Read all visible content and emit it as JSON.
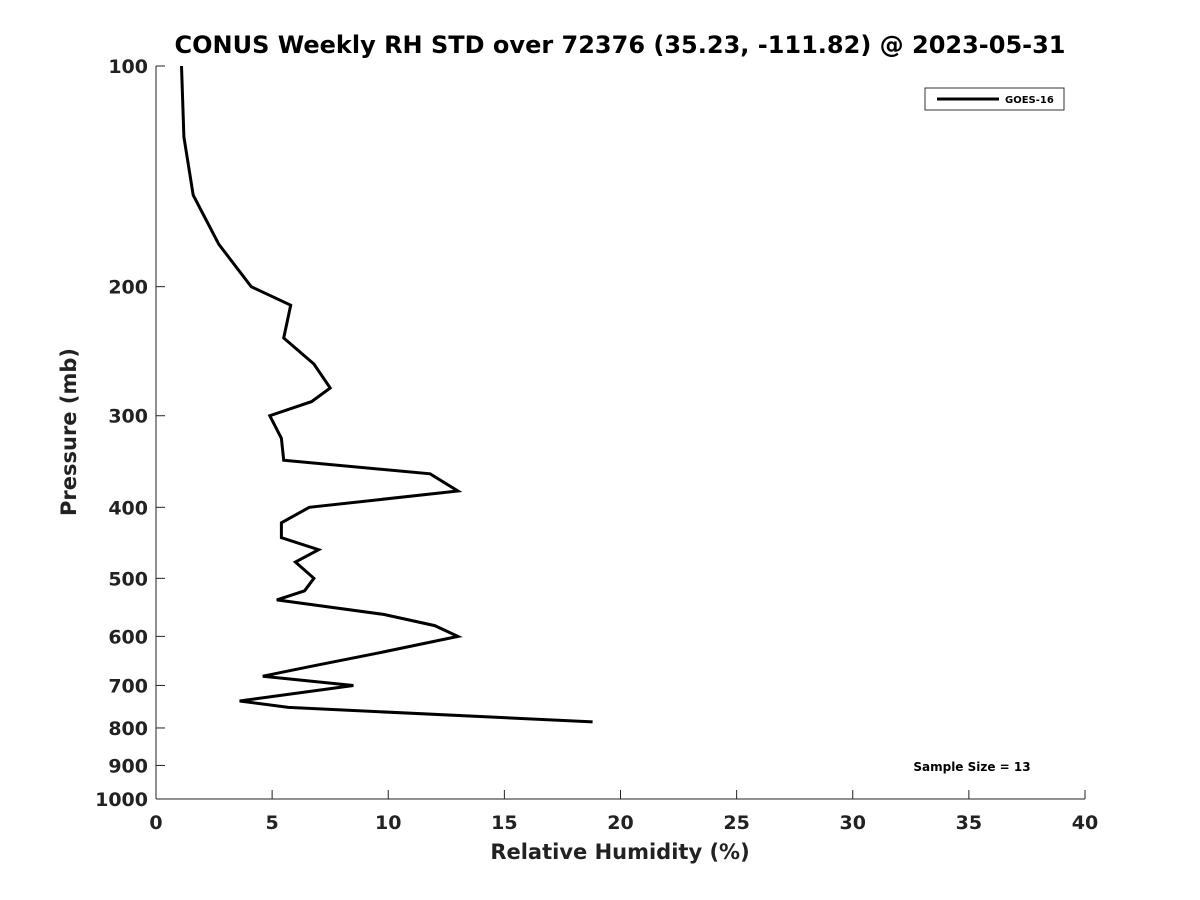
{
  "chart_data": {
    "type": "line",
    "title": "CONUS Weekly RH STD over 72376 (35.23, -111.82) @ 2023-05-31",
    "xlabel": "Relative Humidity (%)",
    "ylabel": "Pressure (mb)",
    "xlim": [
      0,
      40
    ],
    "ylim": [
      100,
      1000
    ],
    "yscale": "log",
    "y_reversed": true,
    "grid": false,
    "legend_position": "top-right",
    "x_ticks": [
      0,
      5,
      10,
      15,
      20,
      25,
      30,
      35,
      40
    ],
    "x_tick_labels": [
      "0",
      "5",
      "10",
      "15",
      "20",
      "25",
      "30",
      "35",
      "40"
    ],
    "y_ticks": [
      100,
      200,
      300,
      400,
      500,
      600,
      700,
      800,
      900,
      1000
    ],
    "y_tick_labels": [
      "100",
      "200",
      "300",
      "400",
      "500",
      "600",
      "700",
      "800",
      "900",
      "1000"
    ],
    "series": [
      {
        "name": "GOES-16",
        "color": "#000000",
        "points": [
          {
            "x": 1.1,
            "y": 100
          },
          {
            "x": 1.2,
            "y": 125
          },
          {
            "x": 1.6,
            "y": 150
          },
          {
            "x": 2.7,
            "y": 175
          },
          {
            "x": 4.1,
            "y": 200
          },
          {
            "x": 5.8,
            "y": 212
          },
          {
            "x": 5.5,
            "y": 235
          },
          {
            "x": 6.8,
            "y": 255
          },
          {
            "x": 7.5,
            "y": 275
          },
          {
            "x": 6.7,
            "y": 287
          },
          {
            "x": 4.9,
            "y": 300
          },
          {
            "x": 5.4,
            "y": 322
          },
          {
            "x": 5.5,
            "y": 345
          },
          {
            "x": 11.8,
            "y": 360
          },
          {
            "x": 13.0,
            "y": 380
          },
          {
            "x": 6.6,
            "y": 400
          },
          {
            "x": 5.4,
            "y": 420
          },
          {
            "x": 5.4,
            "y": 440
          },
          {
            "x": 7.0,
            "y": 457
          },
          {
            "x": 6.0,
            "y": 475
          },
          {
            "x": 6.8,
            "y": 500
          },
          {
            "x": 6.4,
            "y": 520
          },
          {
            "x": 5.2,
            "y": 535
          },
          {
            "x": 9.8,
            "y": 560
          },
          {
            "x": 12.0,
            "y": 580
          },
          {
            "x": 13.0,
            "y": 600
          },
          {
            "x": 9.8,
            "y": 630
          },
          {
            "x": 6.6,
            "y": 660
          },
          {
            "x": 4.6,
            "y": 680
          },
          {
            "x": 8.5,
            "y": 700
          },
          {
            "x": 3.6,
            "y": 735
          },
          {
            "x": 5.7,
            "y": 750
          },
          {
            "x": 18.8,
            "y": 785
          }
        ]
      }
    ],
    "annotations": [
      {
        "text": "Sample Size = 13",
        "position": "bottom-right"
      }
    ]
  }
}
